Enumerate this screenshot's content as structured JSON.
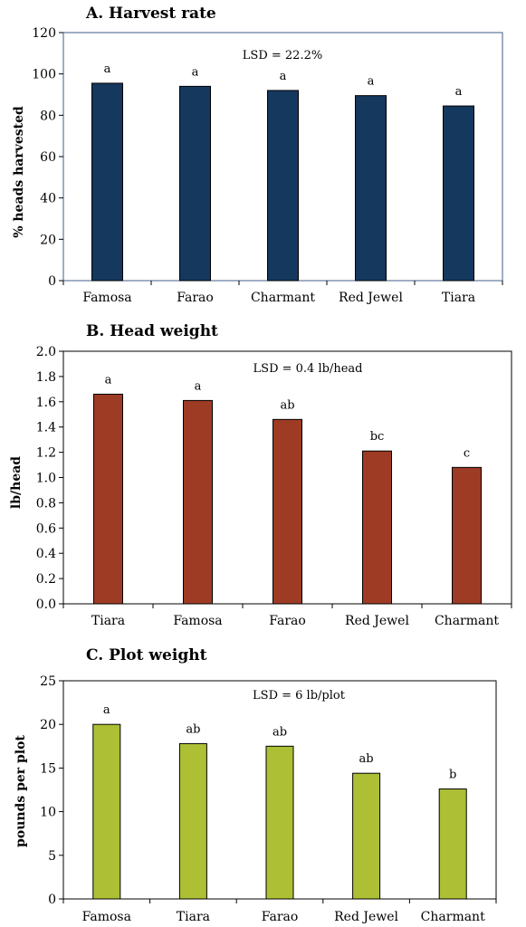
{
  "chart_data": [
    {
      "type": "bar",
      "title": "A. Harvest rate",
      "ylabel": "% heads harvested",
      "xlabel": "",
      "annotation": "LSD = 22.2%",
      "categories": [
        "Famosa",
        "Farao",
        "Charmant",
        "Red Jewel",
        "Tiara"
      ],
      "values": [
        95.5,
        94,
        92,
        89.5,
        84.5
      ],
      "letters": [
        "a",
        "a",
        "a",
        "a",
        "a"
      ],
      "ylim": [
        0,
        120
      ],
      "yticks": [
        "0",
        "20",
        "40",
        "60",
        "80",
        "100",
        "120"
      ],
      "color": "#15385e",
      "grid": false,
      "legend": "none"
    },
    {
      "type": "bar",
      "title": "B. Head weight",
      "ylabel": "lb/head",
      "xlabel": "",
      "annotation": "LSD = 0.4 lb/head",
      "categories": [
        "Tiara",
        "Famosa",
        "Farao",
        "Red Jewel",
        "Charmant"
      ],
      "values": [
        1.66,
        1.61,
        1.46,
        1.21,
        1.08
      ],
      "letters": [
        "a",
        "a",
        "ab",
        "bc",
        "c"
      ],
      "ylim": [
        0,
        2.0
      ],
      "yticks": [
        "0.0",
        "0.2",
        "0.4",
        "0.6",
        "0.8",
        "1.0",
        "1.2",
        "1.4",
        "1.6",
        "1.8",
        "2.0"
      ],
      "color": "#9e3b24",
      "grid": false,
      "legend": "none"
    },
    {
      "type": "bar",
      "title": "C. Plot weight",
      "ylabel": "pounds per plot",
      "xlabel": "",
      "annotation": "LSD = 6 lb/plot",
      "categories": [
        "Famosa",
        "Tiara",
        "Farao",
        "Red Jewel",
        "Charmant"
      ],
      "values": [
        20,
        17.8,
        17.5,
        14.4,
        12.6
      ],
      "letters": [
        "a",
        "ab",
        "ab",
        "ab",
        "b"
      ],
      "ylim": [
        0,
        25
      ],
      "yticks": [
        "0",
        "5",
        "10",
        "15",
        "20",
        "25"
      ],
      "color": "#adbf35",
      "grid": false,
      "legend": "none"
    }
  ]
}
